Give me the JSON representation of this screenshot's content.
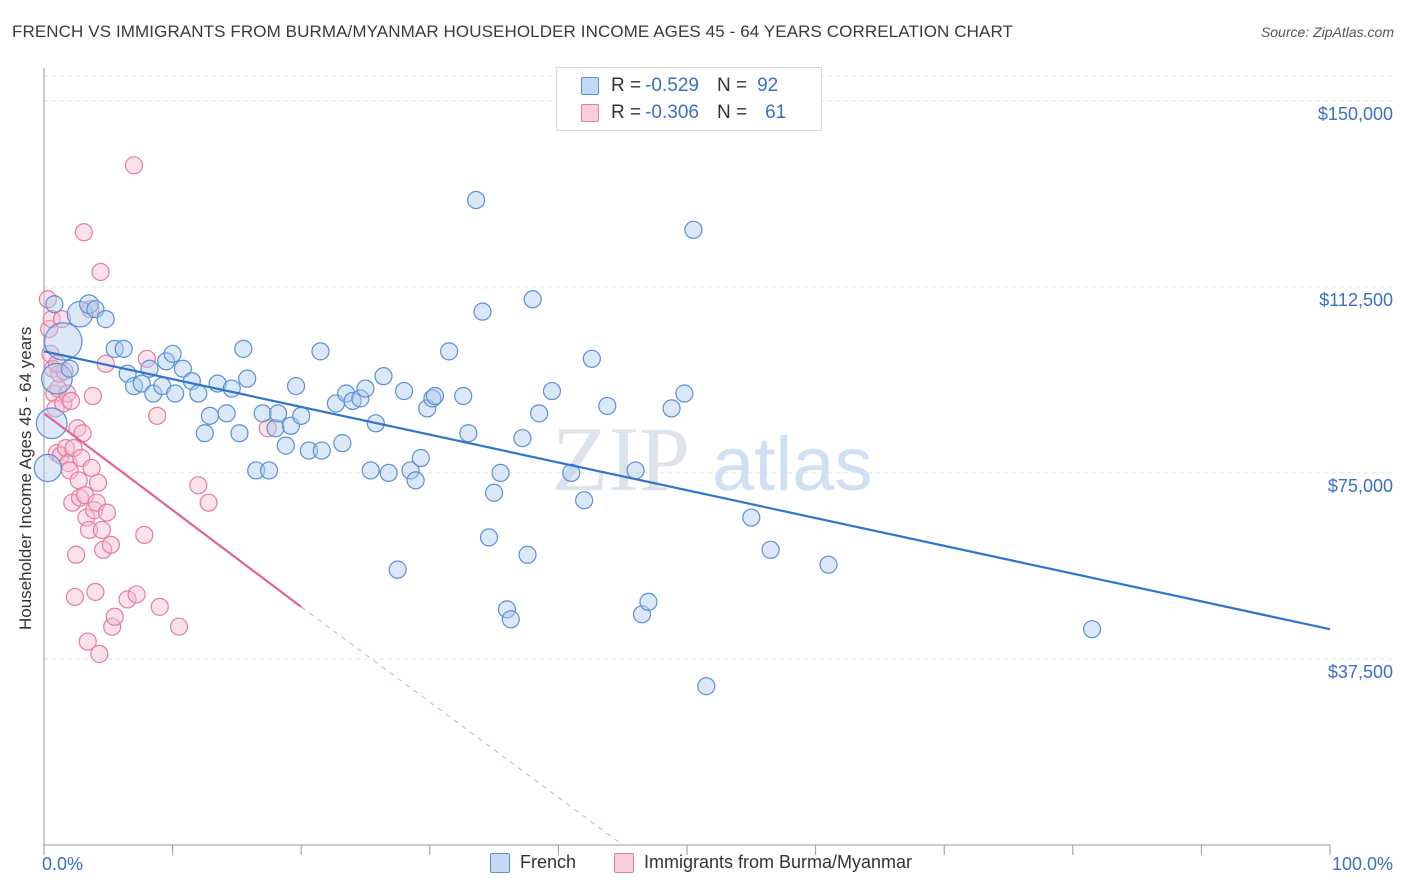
{
  "header": {
    "title": "FRENCH VS IMMIGRANTS FROM BURMA/MYANMAR HOUSEHOLDER INCOME AGES 45 - 64 YEARS CORRELATION CHART",
    "source": "Source: ZipAtlas.com"
  },
  "watermark": {
    "zip": "ZIP",
    "atlas": "atlas"
  },
  "legend": {
    "rows": [
      {
        "r_label": "R =",
        "r_value": "-0.529",
        "n_label": "N =",
        "n_value": "92"
      },
      {
        "r_label": "R =",
        "r_value": "-0.306",
        "n_label": "N =",
        "n_value": "61"
      }
    ]
  },
  "bottom_legend": {
    "french": "French",
    "burma": "Immigrants from Burma/Myanmar"
  },
  "colors": {
    "french_fill": "#aecbf0",
    "french_stroke": "#5b8fd6",
    "french_line": "#2e74d0",
    "burma_fill": "#f7bcd0",
    "burma_stroke": "#e47ca0",
    "burma_line": "#e0648f",
    "tick_label": "#3a6fc4",
    "grid": "#e2e2e2"
  },
  "chart_data": {
    "type": "scatter",
    "title": "FRENCH VS IMMIGRANTS FROM BURMA/MYANMAR HOUSEHOLDER INCOME AGES 45 - 64 YEARS CORRELATION CHART",
    "xlabel": "",
    "ylabel": "Householder Income Ages 45 - 64 years",
    "xlim": [
      0,
      100
    ],
    "ylim": [
      0,
      155000
    ],
    "x_tick_labels": [
      "0.0%",
      "100.0%"
    ],
    "y_ticks": [
      37500,
      75000,
      112500,
      150000
    ],
    "y_tick_labels": [
      "$37,500",
      "$75,000",
      "$112,500",
      "$150,000"
    ],
    "grid": true,
    "legend_position": "top-center",
    "series": [
      {
        "name": "French",
        "r": -0.529,
        "n": 92,
        "trend": {
          "x": [
            0,
            100
          ],
          "y": [
            99500,
            43500
          ]
        },
        "points": [
          [
            0.3,
            76000,
            1.6
          ],
          [
            0.6,
            85000,
            1.8
          ],
          [
            1.0,
            94000,
            1.8
          ],
          [
            1.5,
            101500,
            2.2
          ],
          [
            2.8,
            107000,
            1.5
          ],
          [
            3.5,
            109000,
            1.1
          ],
          [
            4.0,
            108000,
            1
          ],
          [
            4.8,
            106000,
            1
          ],
          [
            5.5,
            100000,
            1
          ],
          [
            6.2,
            100000,
            1
          ],
          [
            6.5,
            95000,
            1
          ],
          [
            7.0,
            92500,
            1
          ],
          [
            7.6,
            93000,
            1
          ],
          [
            8.2,
            96000,
            1
          ],
          [
            8.5,
            91000,
            1
          ],
          [
            9.2,
            92500,
            1
          ],
          [
            9.5,
            97500,
            1
          ],
          [
            10.0,
            99000,
            1
          ],
          [
            10.2,
            91000,
            1
          ],
          [
            10.8,
            96000,
            1
          ],
          [
            11.5,
            93500,
            1
          ],
          [
            12.0,
            91000,
            1
          ],
          [
            12.5,
            83000,
            1
          ],
          [
            12.9,
            86500,
            1
          ],
          [
            13.5,
            93000,
            1
          ],
          [
            14.2,
            87000,
            1
          ],
          [
            14.6,
            92000,
            1
          ],
          [
            15.2,
            83000,
            1
          ],
          [
            15.5,
            100000,
            1
          ],
          [
            15.8,
            94000,
            1
          ],
          [
            16.5,
            75500,
            1
          ],
          [
            17.0,
            87000,
            1
          ],
          [
            17.5,
            75500,
            1
          ],
          [
            18.0,
            84000,
            1
          ],
          [
            18.2,
            87000,
            1
          ],
          [
            18.8,
            80500,
            1
          ],
          [
            19.2,
            84500,
            1
          ],
          [
            19.6,
            92500,
            1
          ],
          [
            20.0,
            86500,
            1
          ],
          [
            20.6,
            79500,
            1
          ],
          [
            21.5,
            99500,
            1
          ],
          [
            21.6,
            79500,
            1
          ],
          [
            22.7,
            89000,
            1
          ],
          [
            23.2,
            81000,
            1
          ],
          [
            23.5,
            91000,
            1
          ],
          [
            24.0,
            89500,
            1
          ],
          [
            24.6,
            90000,
            1
          ],
          [
            25.0,
            92000,
            1
          ],
          [
            25.4,
            75500,
            1
          ],
          [
            25.8,
            85000,
            1
          ],
          [
            26.4,
            94500,
            1
          ],
          [
            26.8,
            75000,
            1
          ],
          [
            27.5,
            55500,
            1
          ],
          [
            28.0,
            91500,
            1
          ],
          [
            28.5,
            75500,
            1
          ],
          [
            28.9,
            73500,
            1
          ],
          [
            29.3,
            78000,
            1
          ],
          [
            29.8,
            88000,
            1
          ],
          [
            30.2,
            90000,
            1
          ],
          [
            30.4,
            90500,
            1
          ],
          [
            31.5,
            99500,
            1
          ],
          [
            32.6,
            90500,
            1
          ],
          [
            33.0,
            83000,
            1
          ],
          [
            33.6,
            130000,
            1
          ],
          [
            34.1,
            107500,
            1
          ],
          [
            34.6,
            62000,
            1
          ],
          [
            35.0,
            71000,
            1
          ],
          [
            35.5,
            75000,
            1
          ],
          [
            36.0,
            47500,
            1
          ],
          [
            36.3,
            45500,
            1
          ],
          [
            37.2,
            82000,
            1
          ],
          [
            37.6,
            58500,
            1
          ],
          [
            38.0,
            110000,
            1
          ],
          [
            38.5,
            87000,
            1
          ],
          [
            39.5,
            91500,
            1
          ],
          [
            41.0,
            75000,
            1
          ],
          [
            42.0,
            69500,
            1
          ],
          [
            42.6,
            98000,
            1
          ],
          [
            43.8,
            88500,
            1
          ],
          [
            46.0,
            75500,
            1
          ],
          [
            46.5,
            46500,
            1
          ],
          [
            47.0,
            49000,
            1
          ],
          [
            48.8,
            88000,
            1
          ],
          [
            49.8,
            91000,
            1
          ],
          [
            50.5,
            124000,
            1
          ],
          [
            51.5,
            32000,
            1
          ],
          [
            55.0,
            66000,
            1
          ],
          [
            56.5,
            59500,
            1
          ],
          [
            61.0,
            56500,
            1
          ],
          [
            81.5,
            43500,
            1
          ],
          [
            0.8,
            109000,
            1
          ],
          [
            2.0,
            96000,
            1
          ]
        ]
      },
      {
        "name": "Immigrants from Burma/Myanmar",
        "r": -0.306,
        "n": 61,
        "trend": {
          "x": [
            0,
            20
          ],
          "y": [
            87000,
            48000
          ]
        },
        "trend_dashed": {
          "x": [
            20,
            45
          ],
          "y": [
            48000,
            0
          ]
        },
        "points": [
          [
            0.3,
            110000,
            1
          ],
          [
            0.4,
            104000,
            1
          ],
          [
            0.5,
            99000,
            1
          ],
          [
            0.6,
            106000,
            1
          ],
          [
            0.7,
            96000,
            1
          ],
          [
            0.8,
            91000,
            1
          ],
          [
            0.9,
            88000,
            1
          ],
          [
            1.0,
            79000,
            1
          ],
          [
            1.1,
            92000,
            1
          ],
          [
            1.2,
            95000,
            1
          ],
          [
            1.3,
            78500,
            1
          ],
          [
            1.4,
            106000,
            1
          ],
          [
            1.5,
            89000,
            1
          ],
          [
            1.6,
            95500,
            1
          ],
          [
            1.7,
            80000,
            1
          ],
          [
            1.8,
            91000,
            1
          ],
          [
            1.9,
            77000,
            1
          ],
          [
            2.0,
            75500,
            1
          ],
          [
            2.1,
            89500,
            1
          ],
          [
            2.2,
            69000,
            1
          ],
          [
            2.3,
            80000,
            1
          ],
          [
            2.4,
            50000,
            1
          ],
          [
            2.5,
            58500,
            1
          ],
          [
            2.6,
            84000,
            1
          ],
          [
            2.7,
            73500,
            1
          ],
          [
            2.8,
            70000,
            1
          ],
          [
            2.9,
            78000,
            1
          ],
          [
            3.0,
            83000,
            1
          ],
          [
            3.1,
            123500,
            1
          ],
          [
            3.2,
            70500,
            1
          ],
          [
            3.3,
            66000,
            1
          ],
          [
            3.4,
            41000,
            1
          ],
          [
            3.5,
            63500,
            1
          ],
          [
            3.6,
            108000,
            1
          ],
          [
            3.7,
            76000,
            1
          ],
          [
            3.8,
            90500,
            1
          ],
          [
            3.9,
            67500,
            1
          ],
          [
            4.0,
            51000,
            1
          ],
          [
            4.1,
            69000,
            1
          ],
          [
            4.2,
            73000,
            1
          ],
          [
            4.3,
            38500,
            1
          ],
          [
            4.4,
            115500,
            1
          ],
          [
            4.5,
            63500,
            1
          ],
          [
            4.6,
            59500,
            1
          ],
          [
            4.8,
            97000,
            1
          ],
          [
            4.9,
            67000,
            1
          ],
          [
            5.2,
            60500,
            1
          ],
          [
            5.3,
            44000,
            1
          ],
          [
            5.5,
            46000,
            1
          ],
          [
            6.5,
            49500,
            1
          ],
          [
            7.0,
            137000,
            1
          ],
          [
            7.2,
            50500,
            1
          ],
          [
            7.8,
            62500,
            1
          ],
          [
            8.0,
            98000,
            1
          ],
          [
            8.8,
            86500,
            1
          ],
          [
            9.0,
            48000,
            1
          ],
          [
            10.5,
            44000,
            1
          ],
          [
            12.0,
            72500,
            1
          ],
          [
            12.8,
            69000,
            1
          ],
          [
            17.4,
            84000,
            1
          ],
          [
            1.0,
            97000,
            1
          ]
        ]
      }
    ]
  }
}
